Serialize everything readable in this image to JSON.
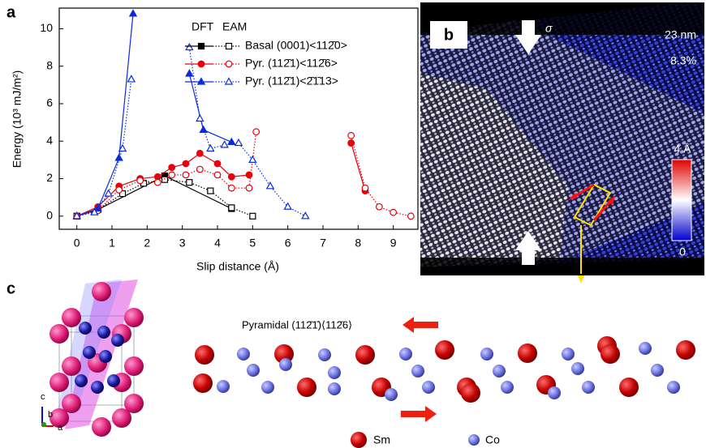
{
  "chart_data": {
    "type": "line",
    "panel_label": "a",
    "y_label": "Energy (10³ mJ/m²)",
    "x_label": "Slip distance (Å)",
    "xlim": [
      -0.5,
      9.7
    ],
    "ylim": [
      -0.7,
      11.1
    ],
    "xticks": [
      0,
      1,
      2,
      3,
      4,
      5,
      6,
      7,
      8,
      9
    ],
    "yticks": [
      0,
      2,
      4,
      6,
      8,
      10
    ],
    "legend_header": [
      "DFT",
      "EAM"
    ],
    "series": [
      {
        "name": "Basal (0001)<112̄0>",
        "color": "#000000",
        "marker": "square",
        "dft_x": [
          0,
          0.6,
          2.5,
          4.4
        ],
        "dft_values": [
          0,
          0.35,
          2.15,
          0.4
        ],
        "eam_x": [
          0,
          0.6,
          1.3,
          1.9,
          2.5,
          3.2,
          3.8,
          4.4,
          5.0
        ],
        "eam_values": [
          0,
          0.35,
          1.2,
          1.75,
          1.95,
          1.8,
          1.35,
          0.45,
          0
        ]
      },
      {
        "name": "Pyr. (112̄1)<112̄6>",
        "color": "#e8000b",
        "marker": "circle",
        "dft_x": [
          0,
          0.6,
          1.2,
          1.8,
          2.3,
          2.7,
          3.1,
          3.5,
          4.0,
          4.4,
          4.9,
          null,
          7.8,
          8.2
        ],
        "dft_values": [
          0,
          0.5,
          1.6,
          2.0,
          2.1,
          2.6,
          2.8,
          3.35,
          2.8,
          2.1,
          2.2,
          null,
          3.9,
          1.35
        ],
        "eam_x": [
          0,
          0.6,
          1.2,
          1.8,
          2.3,
          2.7,
          3.1,
          3.5,
          4.0,
          4.4,
          4.9,
          5.1,
          null,
          7.8,
          8.2,
          8.6,
          9.0,
          9.5
        ],
        "eam_values": [
          0,
          0.3,
          1.4,
          1.9,
          1.8,
          2.2,
          2.2,
          2.5,
          2.2,
          1.5,
          1.5,
          4.5,
          null,
          4.3,
          1.5,
          0.5,
          0.2,
          0
        ]
      },
      {
        "name": "Pyr. (112̄1)<2̄1̄13>",
        "color": "#0a2be0",
        "marker": "triangle",
        "dft_x": [
          0,
          0.6,
          1.2,
          1.6,
          null,
          3.2,
          3.6,
          4.4
        ],
        "dft_values": [
          0,
          0.4,
          3.1,
          10.8,
          null,
          7.6,
          4.6,
          3.95
        ],
        "eam_x": [
          0,
          0.5,
          0.9,
          1.3,
          1.55,
          null,
          3.2,
          3.5,
          3.8,
          4.2,
          4.6,
          5.0,
          5.5,
          6.0,
          6.5
        ],
        "eam_values": [
          0,
          0.2,
          1.2,
          3.6,
          7.3,
          null,
          9.0,
          5.2,
          3.6,
          3.8,
          3.9,
          3.0,
          1.6,
          0.5,
          0
        ]
      }
    ]
  },
  "panel_b": {
    "label": "b",
    "stress": "σ",
    "scale": "23 nm",
    "strain": "8.3%",
    "colorbar_max": "4 Å",
    "colorbar_min": 0
  },
  "panel_c": {
    "label": "c",
    "plane": "Pyramidal (112̄1̄)⟨112̄6⟩",
    "axes": [
      "c",
      "b",
      "a"
    ],
    "legend": [
      "Sm",
      "Co"
    ]
  }
}
